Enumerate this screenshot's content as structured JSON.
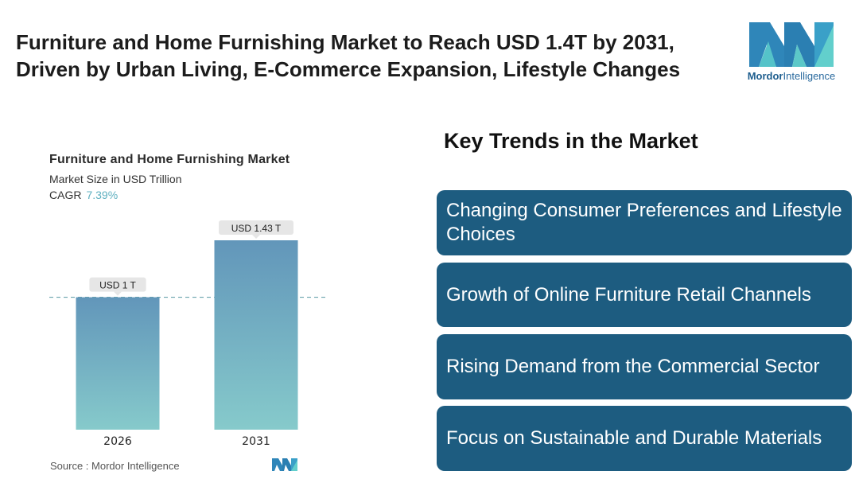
{
  "headline": {
    "line1": "Furniture and Home Furnishing Market to Reach USD 1.4T by 2031,",
    "line2": "Driven by Urban Living, E-Commerce Expansion, Lifestyle Changes"
  },
  "brand": {
    "name_bold": "Mordor",
    "name_rest": "Intelligence"
  },
  "chart": {
    "title": "Furniture and Home Furnishing Market",
    "subtitle": "Market Size in USD Trillion",
    "cagr_label": "CAGR",
    "cagr_value": "7.39%"
  },
  "chart_data": {
    "type": "bar",
    "title": "Furniture and Home Furnishing Market",
    "ylabel": "Market Size in USD Trillion",
    "categories": [
      "2026",
      "2031"
    ],
    "values": [
      1.0,
      1.43
    ],
    "data_labels": [
      "USD 1 T",
      "USD 1.43 T"
    ],
    "ylim": [
      0,
      1.6
    ],
    "grid": false,
    "reference_line": 1.0,
    "colors": {
      "bar_top": "#6296ba",
      "bar_bottom": "#86cacb",
      "label_bg": "#e6e6e6",
      "ref_line": "#6aa3ad"
    }
  },
  "source": "Source :  Mordor Intelligence",
  "trends": {
    "title": "Key Trends in the Market",
    "items": [
      "Changing Consumer Preferences and Lifestyle Choices",
      "Growth of Online Furniture Retail Channels",
      "Rising Demand from the Commercial Sector",
      "Focus on Sustainable and Durable Materials"
    ],
    "box_color": "#1d5c80"
  }
}
